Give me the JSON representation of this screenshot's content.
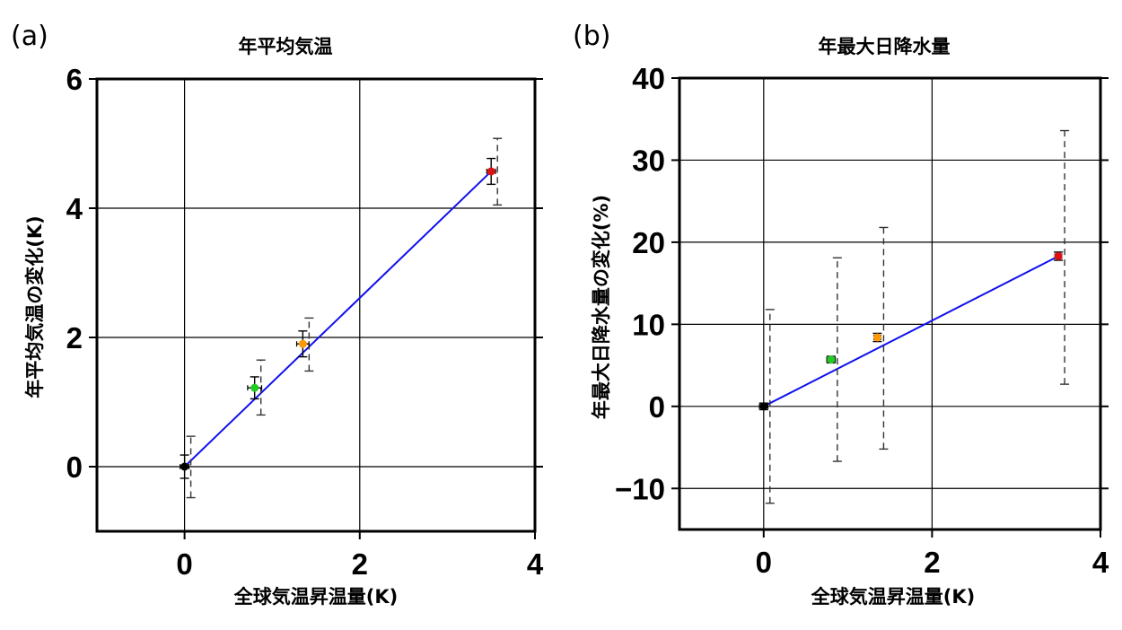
{
  "chart_data": [
    {
      "panel": "(a)",
      "type": "scatter",
      "title": "年平均気温",
      "xlabel": "全球気温昇温量(K)",
      "ylabel": "年平均気温の変化(K)",
      "xlim": [
        -1,
        4
      ],
      "ylim": [
        -1,
        6
      ],
      "xticks": [
        0,
        2,
        4
      ],
      "yticks": [
        0,
        2,
        4,
        6
      ],
      "grid": true,
      "points": [
        {
          "x": 0.0,
          "y": 0.0,
          "color": "#000000",
          "xerr": 0.05,
          "yerr": 0.18,
          "yerr_dashed": [
            -0.48,
            0.47
          ]
        },
        {
          "x": 0.8,
          "y": 1.22,
          "color": "#22cc22",
          "xerr": 0.08,
          "yerr": 0.17,
          "yerr_dashed": [
            0.8,
            1.65
          ]
        },
        {
          "x": 1.35,
          "y": 1.9,
          "color": "#ff9900",
          "xerr": 0.07,
          "yerr": 0.2,
          "yerr_dashed": [
            1.48,
            2.3
          ]
        },
        {
          "x": 3.5,
          "y": 4.57,
          "color": "#dd1111",
          "xerr": 0.05,
          "yerr": 0.2,
          "yerr_dashed": [
            4.05,
            5.08
          ]
        }
      ],
      "fit_line": {
        "x": [
          0,
          3.5
        ],
        "y": [
          0,
          4.57
        ],
        "color": "#1111ee"
      }
    },
    {
      "panel": "(b)",
      "type": "scatter",
      "title": "年最大日降水量",
      "xlabel": "全球気温昇温量(K)",
      "ylabel": "年最大日降水量の変化(%)",
      "xlim": [
        -1,
        4
      ],
      "ylim": [
        -15,
        40
      ],
      "xticks": [
        0,
        2,
        4
      ],
      "yticks": [
        -10,
        0,
        10,
        20,
        30,
        40
      ],
      "grid": true,
      "points": [
        {
          "x": 0.0,
          "y": 0.0,
          "color": "#000000",
          "xerr": 0.05,
          "yerr": 0.4,
          "yerr_dashed": [
            -11.8,
            11.8
          ]
        },
        {
          "x": 0.8,
          "y": 5.7,
          "color": "#22cc22",
          "xerr": 0.05,
          "yerr": 0.4,
          "yerr_dashed": [
            -6.7,
            18.1
          ]
        },
        {
          "x": 1.35,
          "y": 8.4,
          "color": "#ff9900",
          "xerr": 0.04,
          "yerr": 0.5,
          "yerr_dashed": [
            -5.2,
            21.8
          ]
        },
        {
          "x": 3.5,
          "y": 18.3,
          "color": "#dd1111",
          "xerr": 0.04,
          "yerr": 0.5,
          "yerr_dashed": [
            2.7,
            33.6
          ]
        }
      ],
      "fit_line": {
        "x": [
          0,
          3.5
        ],
        "y": [
          0,
          18.3
        ],
        "color": "#1111ee"
      }
    }
  ]
}
